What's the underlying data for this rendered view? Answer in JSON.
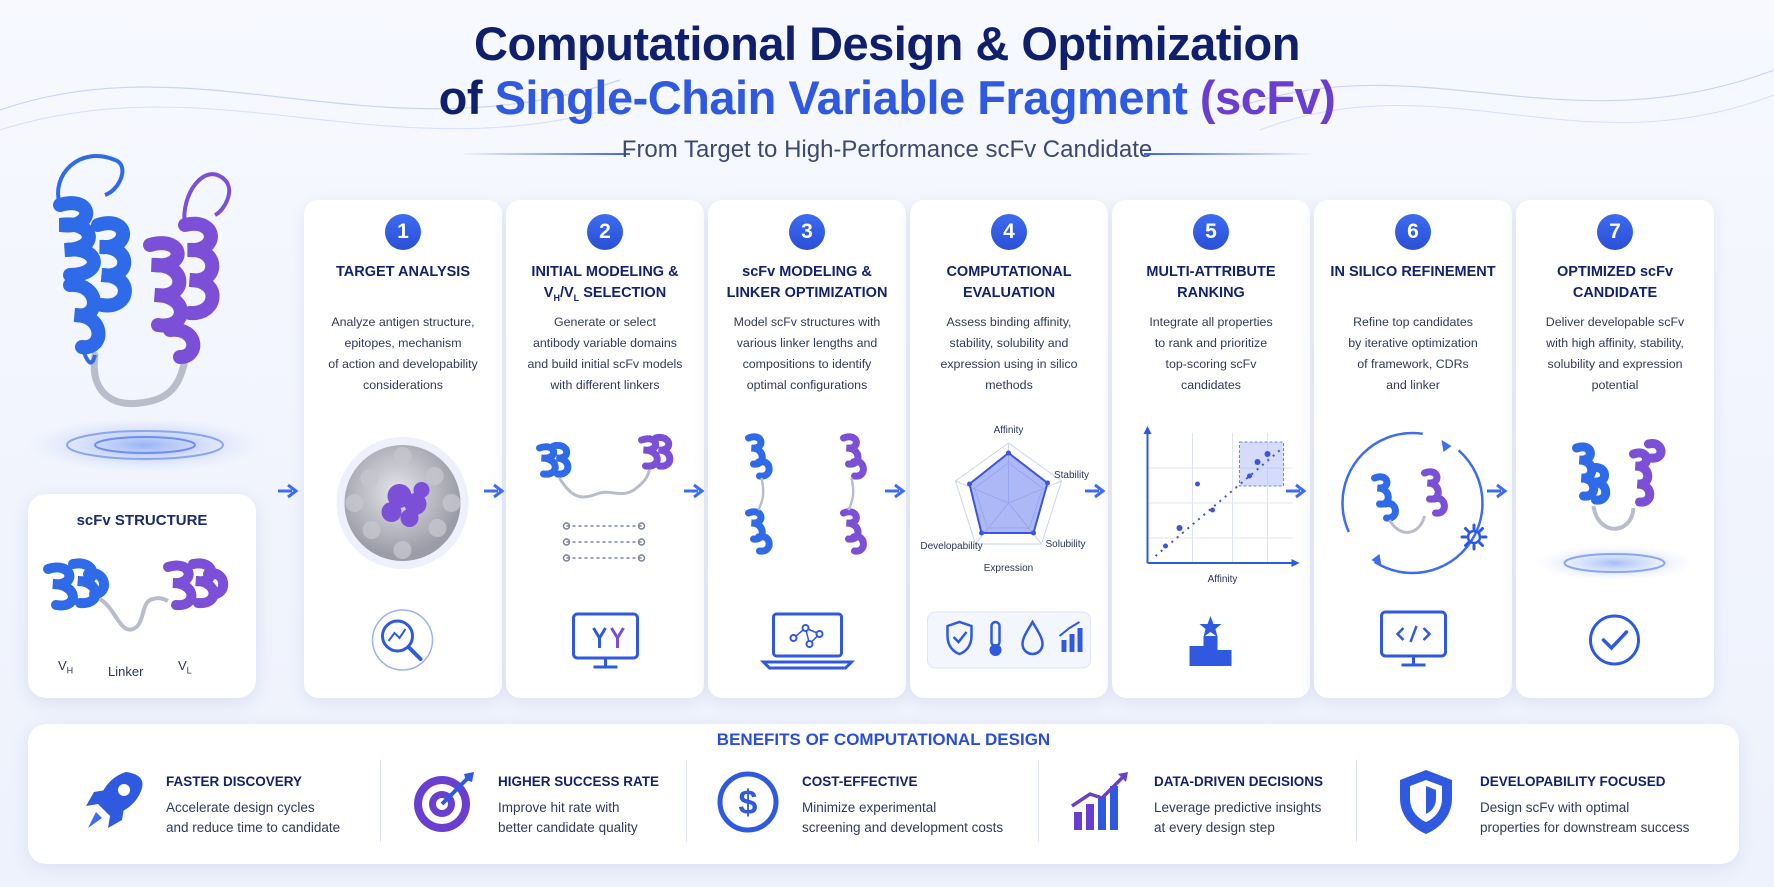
{
  "header": {
    "title_line1": "Computational Design & Optimization",
    "title_line2_a": "of ",
    "title_line2_b": "Single-Chain Variable Fragment",
    "title_line2_c": " (scFv)",
    "subtitle": "From Target to High-Performance scFv Candidate"
  },
  "structure_card": {
    "title": "scFv STRUCTURE",
    "vh": "V",
    "vh_sub": "H",
    "linker": "Linker",
    "vl": "V",
    "vl_sub": "L"
  },
  "steps": [
    {
      "number": "1",
      "title": "TARGET ANALYSIS",
      "lines": [
        "Analyze antigen structure,",
        "epitopes, mechanism",
        "of action and developability",
        "considerations"
      ],
      "icon": "magnifier-chart-icon"
    },
    {
      "number": "2",
      "title_pre": "INITIAL MODELING &",
      "title_vh": "V",
      "title_vh_sub": "H",
      "title_sep": "/V",
      "title_vl_sub": "L",
      "title_post": " SELECTION",
      "lines": [
        "Generate or select",
        "antibody variable domains",
        "and build initial scFv models",
        "with different linkers"
      ],
      "icon": "monitor-antibody-icon"
    },
    {
      "number": "3",
      "title": "scFv MODELING &",
      "title2": "LINKER OPTIMIZATION",
      "lines": [
        "Model scFv structures with",
        "various linker lengths and",
        "compositions to identify",
        "optimal configurations"
      ],
      "icon": "laptop-network-icon"
    },
    {
      "number": "4",
      "title": "COMPUTATIONAL",
      "title2": "EVALUATION",
      "lines": [
        "Assess binding affinity,",
        "stability, solubility and",
        "expression using in silico",
        "methods"
      ],
      "icon": "evaluation-icons",
      "radar": {
        "axes": [
          "Affinity",
          "Stability",
          "Solubility",
          "Expression",
          "Developability"
        ]
      }
    },
    {
      "number": "5",
      "title": "MULTI-ATTRIBUTE",
      "title2": "RANKING",
      "lines": [
        "Integrate all properties",
        "to rank and prioritize",
        "top-scoring scFv",
        "candidates"
      ],
      "icon": "podium-star-icon",
      "xlabel": "Affinity"
    },
    {
      "number": "6",
      "title": "IN SILICO REFINEMENT",
      "lines": [
        "Refine top candidates",
        "by iterative optimization",
        "of framework, CDRs",
        "and linker"
      ],
      "icon": "monitor-code-icon"
    },
    {
      "number": "7",
      "title": "OPTIMIZED scFv",
      "title2": "CANDIDATE",
      "lines": [
        "Deliver developable scFv",
        "with high affinity, stability,",
        "solubility and expression",
        "potential"
      ],
      "icon": "check-circle-icon"
    }
  ],
  "benefits": {
    "title": "BENEFITS OF COMPUTATIONAL DESIGN",
    "items": [
      {
        "name": "FASTER DISCOVERY",
        "lines": [
          "Accelerate design cycles",
          "and reduce time to candidate"
        ],
        "icon": "rocket-icon"
      },
      {
        "name": "HIGHER SUCCESS RATE",
        "lines": [
          "Improve hit rate with",
          "better candidate quality"
        ],
        "icon": "target-icon"
      },
      {
        "name": "COST-EFFECTIVE",
        "lines": [
          "Minimize experimental",
          "screening and development costs"
        ],
        "icon": "dollar-icon"
      },
      {
        "name": "DATA-DRIVEN DECISIONS",
        "lines": [
          "Leverage predictive insights",
          "at every design step"
        ],
        "icon": "growth-chart-icon"
      },
      {
        "name": "DEVELOPABILITY FOCUSED",
        "lines": [
          "Design scFv with optimal",
          "properties for downstream success"
        ],
        "icon": "shield-icon"
      }
    ]
  },
  "colors": {
    "blue": "#2f6be8",
    "purple": "#7b4fd6",
    "navy": "#13226e",
    "accent": "#2a4fd6"
  }
}
